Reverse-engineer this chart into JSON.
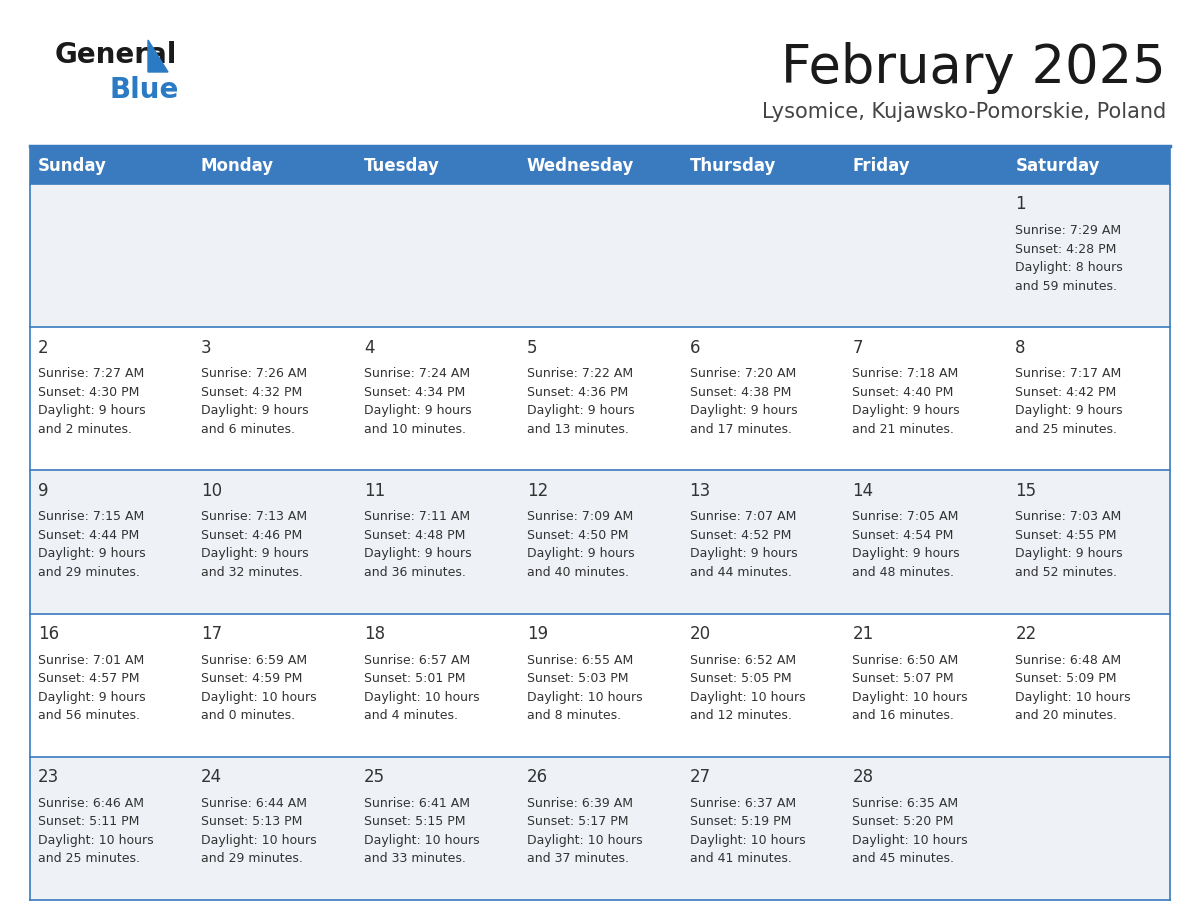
{
  "title": "February 2025",
  "subtitle": "Lysomice, Kujawsko-Pomorskie, Poland",
  "header_bg": "#3a7abf",
  "header_text": "#ffffff",
  "row_bg_odd": "#eef2f7",
  "row_bg_even": "#ffffff",
  "days_of_week": [
    "Sunday",
    "Monday",
    "Tuesday",
    "Wednesday",
    "Thursday",
    "Friday",
    "Saturday"
  ],
  "calendar": [
    [
      {
        "day": "",
        "info": ""
      },
      {
        "day": "",
        "info": ""
      },
      {
        "day": "",
        "info": ""
      },
      {
        "day": "",
        "info": ""
      },
      {
        "day": "",
        "info": ""
      },
      {
        "day": "",
        "info": ""
      },
      {
        "day": "1",
        "info": "Sunrise: 7:29 AM\nSunset: 4:28 PM\nDaylight: 8 hours\nand 59 minutes."
      }
    ],
    [
      {
        "day": "2",
        "info": "Sunrise: 7:27 AM\nSunset: 4:30 PM\nDaylight: 9 hours\nand 2 minutes."
      },
      {
        "day": "3",
        "info": "Sunrise: 7:26 AM\nSunset: 4:32 PM\nDaylight: 9 hours\nand 6 minutes."
      },
      {
        "day": "4",
        "info": "Sunrise: 7:24 AM\nSunset: 4:34 PM\nDaylight: 9 hours\nand 10 minutes."
      },
      {
        "day": "5",
        "info": "Sunrise: 7:22 AM\nSunset: 4:36 PM\nDaylight: 9 hours\nand 13 minutes."
      },
      {
        "day": "6",
        "info": "Sunrise: 7:20 AM\nSunset: 4:38 PM\nDaylight: 9 hours\nand 17 minutes."
      },
      {
        "day": "7",
        "info": "Sunrise: 7:18 AM\nSunset: 4:40 PM\nDaylight: 9 hours\nand 21 minutes."
      },
      {
        "day": "8",
        "info": "Sunrise: 7:17 AM\nSunset: 4:42 PM\nDaylight: 9 hours\nand 25 minutes."
      }
    ],
    [
      {
        "day": "9",
        "info": "Sunrise: 7:15 AM\nSunset: 4:44 PM\nDaylight: 9 hours\nand 29 minutes."
      },
      {
        "day": "10",
        "info": "Sunrise: 7:13 AM\nSunset: 4:46 PM\nDaylight: 9 hours\nand 32 minutes."
      },
      {
        "day": "11",
        "info": "Sunrise: 7:11 AM\nSunset: 4:48 PM\nDaylight: 9 hours\nand 36 minutes."
      },
      {
        "day": "12",
        "info": "Sunrise: 7:09 AM\nSunset: 4:50 PM\nDaylight: 9 hours\nand 40 minutes."
      },
      {
        "day": "13",
        "info": "Sunrise: 7:07 AM\nSunset: 4:52 PM\nDaylight: 9 hours\nand 44 minutes."
      },
      {
        "day": "14",
        "info": "Sunrise: 7:05 AM\nSunset: 4:54 PM\nDaylight: 9 hours\nand 48 minutes."
      },
      {
        "day": "15",
        "info": "Sunrise: 7:03 AM\nSunset: 4:55 PM\nDaylight: 9 hours\nand 52 minutes."
      }
    ],
    [
      {
        "day": "16",
        "info": "Sunrise: 7:01 AM\nSunset: 4:57 PM\nDaylight: 9 hours\nand 56 minutes."
      },
      {
        "day": "17",
        "info": "Sunrise: 6:59 AM\nSunset: 4:59 PM\nDaylight: 10 hours\nand 0 minutes."
      },
      {
        "day": "18",
        "info": "Sunrise: 6:57 AM\nSunset: 5:01 PM\nDaylight: 10 hours\nand 4 minutes."
      },
      {
        "day": "19",
        "info": "Sunrise: 6:55 AM\nSunset: 5:03 PM\nDaylight: 10 hours\nand 8 minutes."
      },
      {
        "day": "20",
        "info": "Sunrise: 6:52 AM\nSunset: 5:05 PM\nDaylight: 10 hours\nand 12 minutes."
      },
      {
        "day": "21",
        "info": "Sunrise: 6:50 AM\nSunset: 5:07 PM\nDaylight: 10 hours\nand 16 minutes."
      },
      {
        "day": "22",
        "info": "Sunrise: 6:48 AM\nSunset: 5:09 PM\nDaylight: 10 hours\nand 20 minutes."
      }
    ],
    [
      {
        "day": "23",
        "info": "Sunrise: 6:46 AM\nSunset: 5:11 PM\nDaylight: 10 hours\nand 25 minutes."
      },
      {
        "day": "24",
        "info": "Sunrise: 6:44 AM\nSunset: 5:13 PM\nDaylight: 10 hours\nand 29 minutes."
      },
      {
        "day": "25",
        "info": "Sunrise: 6:41 AM\nSunset: 5:15 PM\nDaylight: 10 hours\nand 33 minutes."
      },
      {
        "day": "26",
        "info": "Sunrise: 6:39 AM\nSunset: 5:17 PM\nDaylight: 10 hours\nand 37 minutes."
      },
      {
        "day": "27",
        "info": "Sunrise: 6:37 AM\nSunset: 5:19 PM\nDaylight: 10 hours\nand 41 minutes."
      },
      {
        "day": "28",
        "info": "Sunrise: 6:35 AM\nSunset: 5:20 PM\nDaylight: 10 hours\nand 45 minutes."
      },
      {
        "day": "",
        "info": ""
      }
    ]
  ],
  "cell_separator_color": "#3a7abf",
  "text_color": "#333333",
  "day_num_color": "#333333",
  "logo_triangle_color": "#2b7bc4",
  "logo_black_text": "#1a1a1a",
  "logo_blue_text": "#2b7bc4",
  "title_fontsize": 38,
  "subtitle_fontsize": 15,
  "header_fontsize": 12,
  "day_num_fontsize": 12,
  "info_fontsize": 9.0
}
